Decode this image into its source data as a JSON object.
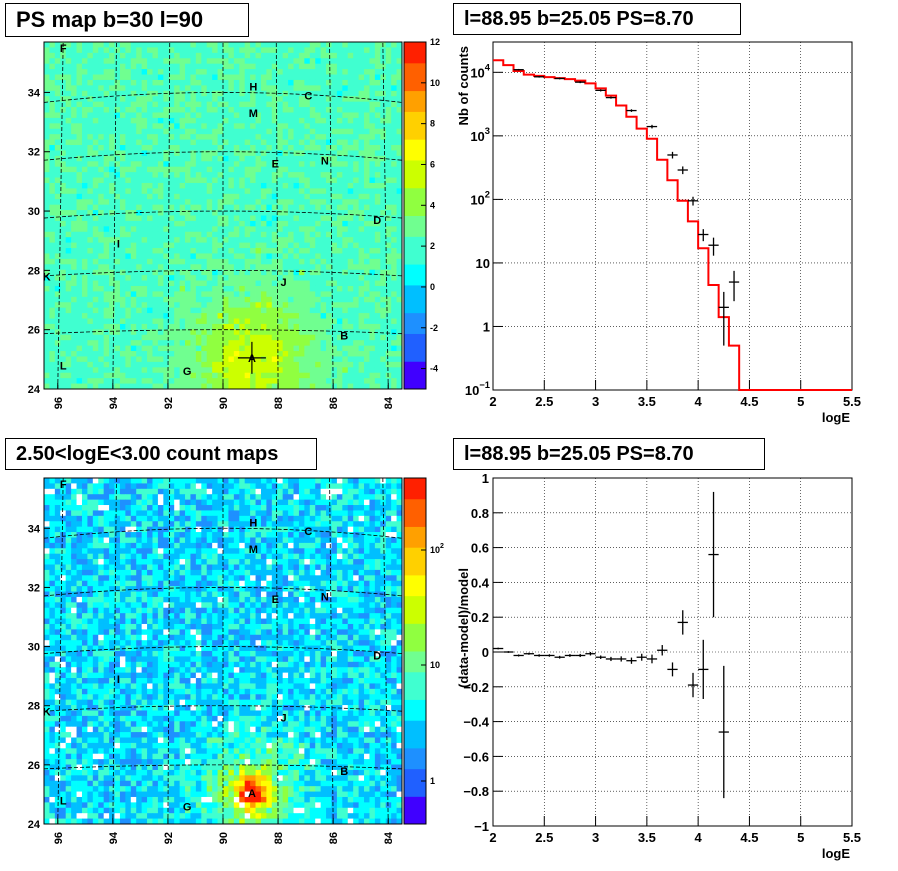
{
  "chart_data": [
    {
      "type": "heatmap",
      "title": "PS map b=30 l=90",
      "xticks": [
        "96",
        "94",
        "92",
        "90",
        "88",
        "86",
        "84"
      ],
      "yticks": [
        "24",
        "26",
        "28",
        "30",
        "32",
        "34"
      ],
      "xlim": [
        96.5,
        83.5
      ],
      "ylim": [
        24,
        35.7
      ],
      "colorbar_ticks": [
        "-4",
        "-2",
        "0",
        "2",
        "4",
        "6",
        "8",
        "10",
        "12"
      ],
      "zlim": [
        -5,
        12
      ],
      "sources": [
        {
          "label": "F",
          "l": 95.8,
          "b": 35.5
        },
        {
          "label": "H",
          "l": 88.9,
          "b": 34.2
        },
        {
          "label": "C",
          "l": 86.9,
          "b": 33.9
        },
        {
          "label": "M",
          "l": 88.9,
          "b": 33.3
        },
        {
          "label": "E",
          "l": 88.1,
          "b": 31.6
        },
        {
          "label": "N",
          "l": 86.3,
          "b": 31.7
        },
        {
          "label": "D",
          "l": 84.4,
          "b": 29.7
        },
        {
          "label": "I",
          "l": 93.8,
          "b": 28.9
        },
        {
          "label": "K",
          "l": 96.4,
          "b": 27.8
        },
        {
          "label": "J",
          "l": 87.8,
          "b": 27.6
        },
        {
          "label": "B",
          "l": 85.6,
          "b": 25.8
        },
        {
          "label": "A",
          "l": 88.95,
          "b": 25.05
        },
        {
          "label": "G",
          "l": 91.3,
          "b": 24.6
        },
        {
          "label": "L",
          "l": 95.8,
          "b": 24.8
        }
      ],
      "marker": {
        "l": 88.95,
        "b": 25.05
      }
    },
    {
      "type": "line",
      "title": "l=88.95 b=25.05 PS=8.70",
      "xlabel": "logE",
      "ylabel": "Nb of counts",
      "xlim": [
        2,
        5.5
      ],
      "ylim": [
        0.1,
        30000
      ],
      "yscale": "log",
      "xticks": [
        "2",
        "2.5",
        "3",
        "3.5",
        "4",
        "4.5",
        "5",
        "5.5"
      ],
      "yticks": [
        {
          "v": 0.1,
          "base": "10",
          "exp": "−1"
        },
        {
          "v": 1,
          "base": "1",
          "exp": ""
        },
        {
          "v": 10,
          "base": "10",
          "exp": ""
        },
        {
          "v": 100,
          "base": "10",
          "exp": "2"
        },
        {
          "v": 1000,
          "base": "10",
          "exp": "3"
        },
        {
          "v": 10000,
          "base": "10",
          "exp": "4"
        }
      ],
      "model_color": "#ff0000",
      "model_step": {
        "edges": [
          2.0,
          2.1,
          2.2,
          2.3,
          2.4,
          2.5,
          2.6,
          2.7,
          2.8,
          2.9,
          3.0,
          3.1,
          3.2,
          3.3,
          3.4,
          3.5,
          3.6,
          3.7,
          3.8,
          3.9,
          4.0,
          4.1,
          4.2,
          4.3,
          4.4,
          4.5,
          4.6,
          4.7,
          4.8,
          4.9,
          5.0,
          5.1,
          5.2,
          5.3,
          5.4,
          5.5
        ],
        "values": [
          15500,
          13000,
          10500,
          9200,
          8800,
          8400,
          8100,
          7800,
          7400,
          6700,
          5600,
          4300,
          3000,
          2000,
          1300,
          900,
          420,
          200,
          95,
          45,
          17,
          4.5,
          1.4,
          0.5,
          0.1,
          0.1,
          0.1,
          0.1,
          0.1,
          0.1,
          0.1,
          0.1,
          0.1,
          0.1,
          0.1
        ]
      },
      "data_points": [
        {
          "x": 2.25,
          "y": 11000,
          "err": 300
        },
        {
          "x": 2.45,
          "y": 8500,
          "err": 250
        },
        {
          "x": 2.65,
          "y": 8000,
          "err": 250
        },
        {
          "x": 2.85,
          "y": 7000,
          "err": 250
        },
        {
          "x": 3.05,
          "y": 5200,
          "err": 200
        },
        {
          "x": 3.15,
          "y": 4000,
          "err": 150
        },
        {
          "x": 3.35,
          "y": 2500,
          "err": 120
        },
        {
          "x": 3.55,
          "y": 1400,
          "err": 90
        },
        {
          "x": 3.75,
          "y": 500,
          "err": 60
        },
        {
          "x": 3.85,
          "y": 290,
          "err": 40
        },
        {
          "x": 3.95,
          "y": 95,
          "err": 15
        },
        {
          "x": 4.05,
          "y": 28,
          "err": 6
        },
        {
          "x": 4.15,
          "y": 19,
          "err": 6
        },
        {
          "x": 4.25,
          "y": 2,
          "err": 1.5
        },
        {
          "x": 4.35,
          "y": 5,
          "err": 2.5
        }
      ]
    },
    {
      "type": "heatmap",
      "title": "2.50<logE<3.00 count maps",
      "xticks": [
        "96",
        "94",
        "92",
        "90",
        "88",
        "86",
        "84"
      ],
      "yticks": [
        "24",
        "26",
        "28",
        "30",
        "32",
        "34"
      ],
      "xlim": [
        96.5,
        83.5
      ],
      "ylim": [
        24,
        35.7
      ],
      "colorbar_ticks": [
        "10",
        "10",
        "1"
      ],
      "colorbar_exps": [
        "2",
        "",
        ""
      ],
      "zscale": "log"
    },
    {
      "type": "scatter",
      "title": "l=88.95 b=25.05 PS=8.70",
      "xlabel": "logE",
      "ylabel": "(data-model)/model",
      "xlim": [
        2,
        5.5
      ],
      "ylim": [
        -1,
        1
      ],
      "xticks": [
        "2",
        "2.5",
        "3",
        "3.5",
        "4",
        "4.5",
        "5",
        "5.5"
      ],
      "yticks": [
        "1",
        "0.8",
        "0.6",
        "0.4",
        "0.2",
        "0",
        "−0.2",
        "−0.4",
        "−0.6",
        "−0.8",
        "−1"
      ],
      "points": [
        {
          "x": 2.05,
          "y": 0.02,
          "err": 0.005
        },
        {
          "x": 2.15,
          "y": 0.0,
          "err": 0.005
        },
        {
          "x": 2.25,
          "y": -0.02,
          "err": 0.006
        },
        {
          "x": 2.35,
          "y": -0.01,
          "err": 0.006
        },
        {
          "x": 2.45,
          "y": -0.02,
          "err": 0.007
        },
        {
          "x": 2.55,
          "y": -0.02,
          "err": 0.007
        },
        {
          "x": 2.65,
          "y": -0.03,
          "err": 0.008
        },
        {
          "x": 2.75,
          "y": -0.02,
          "err": 0.008
        },
        {
          "x": 2.85,
          "y": -0.02,
          "err": 0.009
        },
        {
          "x": 2.95,
          "y": -0.01,
          "err": 0.01
        },
        {
          "x": 3.05,
          "y": -0.03,
          "err": 0.01
        },
        {
          "x": 3.15,
          "y": -0.04,
          "err": 0.012
        },
        {
          "x": 3.25,
          "y": -0.04,
          "err": 0.015
        },
        {
          "x": 3.35,
          "y": -0.05,
          "err": 0.018
        },
        {
          "x": 3.45,
          "y": -0.03,
          "err": 0.02
        },
        {
          "x": 3.55,
          "y": -0.04,
          "err": 0.025
        },
        {
          "x": 3.65,
          "y": 0.01,
          "err": 0.03
        },
        {
          "x": 3.75,
          "y": -0.1,
          "err": 0.04
        },
        {
          "x": 3.85,
          "y": 0.17,
          "err": 0.07
        },
        {
          "x": 3.95,
          "y": -0.19,
          "err": 0.07
        },
        {
          "x": 4.05,
          "y": -0.1,
          "err": 0.17
        },
        {
          "x": 4.15,
          "y": 0.56,
          "err": 0.36
        },
        {
          "x": 4.25,
          "y": -0.46,
          "err": 0.38
        }
      ]
    }
  ]
}
